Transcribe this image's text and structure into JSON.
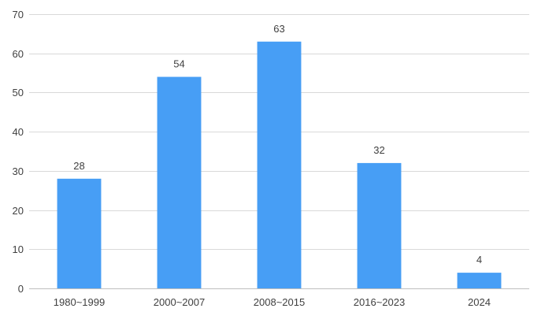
{
  "chart_data": {
    "type": "bar",
    "categories": [
      "1980~1999",
      "2000~2007",
      "2008~2015",
      "2016~2023",
      "2024"
    ],
    "values": [
      28,
      54,
      63,
      32,
      4
    ],
    "title": "",
    "xlabel": "",
    "ylabel": "",
    "ylim": [
      0,
      70
    ],
    "yticks": [
      0,
      10,
      20,
      30,
      40,
      50,
      60,
      70
    ],
    "grid": true,
    "legend": "none",
    "bar_color": "#479ef5",
    "data_labels": true
  }
}
